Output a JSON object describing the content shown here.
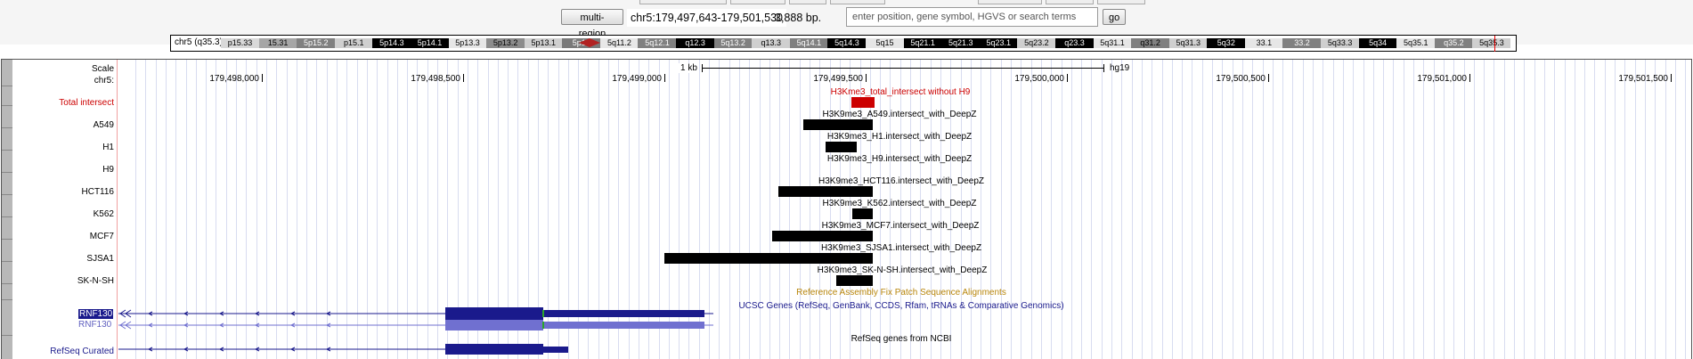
{
  "navigation": {
    "multi_region_label": "multi-region",
    "position": "chr5:179,497,643-179,501,530",
    "size": "3,888 bp.",
    "search_placeholder": "enter position, gene symbol, HGVS or search terms",
    "go_label": "go"
  },
  "ideogram": {
    "label": "chr5 (q35.3)",
    "bands": [
      {
        "name": "p15.33",
        "color": "#d9d9d9",
        "text": "#000"
      },
      {
        "name": "15.31",
        "color": "#a6a6a6",
        "text": "#000"
      },
      {
        "name": "5p15.2",
        "color": "#808080",
        "text": "#fff"
      },
      {
        "name": "p15.1",
        "color": "#cfcfcf",
        "text": "#000"
      },
      {
        "name": "5p14.3",
        "color": "#000000",
        "text": "#fff"
      },
      {
        "name": "5p14.1",
        "color": "#000000",
        "text": "#fff"
      },
      {
        "name": "5p13.3",
        "color": "#e6e6e6",
        "text": "#000"
      },
      {
        "name": "5p13.2",
        "color": "#8c8c8c",
        "text": "#000"
      },
      {
        "name": "5p13.1",
        "color": "#cfcfcf",
        "text": "#000"
      },
      {
        "name": "5p12",
        "color": "#7a7a7a",
        "text": "#fff"
      },
      {
        "name": "5q11.2",
        "color": "#e8e8e8",
        "text": "#000"
      },
      {
        "name": "5q12.1",
        "color": "#808080",
        "text": "#fff"
      },
      {
        "name": "q12.3",
        "color": "#000000",
        "text": "#fff"
      },
      {
        "name": "5q13.2",
        "color": "#808080",
        "text": "#fff"
      },
      {
        "name": "q13.3",
        "color": "#cfcfcf",
        "text": "#000"
      },
      {
        "name": "5q14.1",
        "color": "#808080",
        "text": "#fff"
      },
      {
        "name": "5q14.3",
        "color": "#000000",
        "text": "#fff"
      },
      {
        "name": "5q15",
        "color": "#e6e6e6",
        "text": "#000"
      },
      {
        "name": "5q21.1",
        "color": "#000000",
        "text": "#fff"
      },
      {
        "name": "5q21.3",
        "color": "#000000",
        "text": "#fff"
      },
      {
        "name": "5q23.1",
        "color": "#000000",
        "text": "#fff"
      },
      {
        "name": "5q23.2",
        "color": "#cfcfcf",
        "text": "#000"
      },
      {
        "name": "q23.3",
        "color": "#000000",
        "text": "#fff"
      },
      {
        "name": "5q31.1",
        "color": "#e6e6e6",
        "text": "#000"
      },
      {
        "name": "q31.2",
        "color": "#808080",
        "text": "#000"
      },
      {
        "name": "5q31.3",
        "color": "#cfcfcf",
        "text": "#000"
      },
      {
        "name": "5q32",
        "color": "#000000",
        "text": "#fff"
      },
      {
        "name": "33.1",
        "color": "#e6e6e6",
        "text": "#000"
      },
      {
        "name": "33.2",
        "color": "#808080",
        "text": "#fff"
      },
      {
        "name": "5q33.3",
        "color": "#cfcfcf",
        "text": "#000"
      },
      {
        "name": "5q34",
        "color": "#000000",
        "text": "#fff"
      },
      {
        "name": "5q35.1",
        "color": "#e6e6e6",
        "text": "#000"
      },
      {
        "name": "q35.2",
        "color": "#808080",
        "text": "#fff"
      },
      {
        "name": "5q35.3",
        "color": "#cfcfcf",
        "text": "#000"
      }
    ]
  },
  "ruler": {
    "scale_label": "Scale",
    "chrom_label": "chr5:",
    "scale_bar": "1 kb",
    "assembly": "hg19",
    "ticks": [
      "179,498,000",
      "179,498,500",
      "179,499,000",
      "179,499,500",
      "179,500,000",
      "179,500,500",
      "179,501,000",
      "179,501,500"
    ]
  },
  "tracks": {
    "total": {
      "left_label": "Total intersect",
      "title": "H3Kme3_total_intersect without H9",
      "color": "#cc0000"
    },
    "a549": {
      "left_label": "A549",
      "title": "H3K9me3_A549.intersect_with_DeepZ"
    },
    "h1": {
      "left_label": "H1",
      "title": "H3K9me3_H1.intersect_with_DeepZ"
    },
    "h9": {
      "left_label": "H9",
      "title": "H3K9me3_H9.intersect_with_DeepZ"
    },
    "hct116": {
      "left_label": "HCT116",
      "title": "H3K9me3_HCT116.intersect_with_DeepZ"
    },
    "k562": {
      "left_label": "K562",
      "title": "H3K9me3_K562.intersect_with_DeepZ"
    },
    "mcf7": {
      "left_label": "MCF7",
      "title": "H3K9me3_MCF7.intersect_with_DeepZ"
    },
    "sjsa1": {
      "left_label": "SJSA1",
      "title": "H3K9me3_SJSA1.intersect_with_DeepZ"
    },
    "sknsh": {
      "left_label": "SK-N-SH",
      "title": "H3K9me3_SK-N-SH.intersect_with_DeepZ"
    },
    "fixpatch": {
      "title": "Reference Assembly Fix Patch Sequence Alignments",
      "color": "#b8860b"
    },
    "ucsc": {
      "gene1": "RNF130",
      "gene2": "RNF130",
      "title": "UCSC Genes (RefSeq, GenBank, CCDS, Rfam, tRNAs & Comparative Genomics)",
      "color": "#1a1a8c"
    },
    "refseq": {
      "left_label": "RefSeq Curated",
      "title": "RefSeq genes from NCBI"
    }
  }
}
